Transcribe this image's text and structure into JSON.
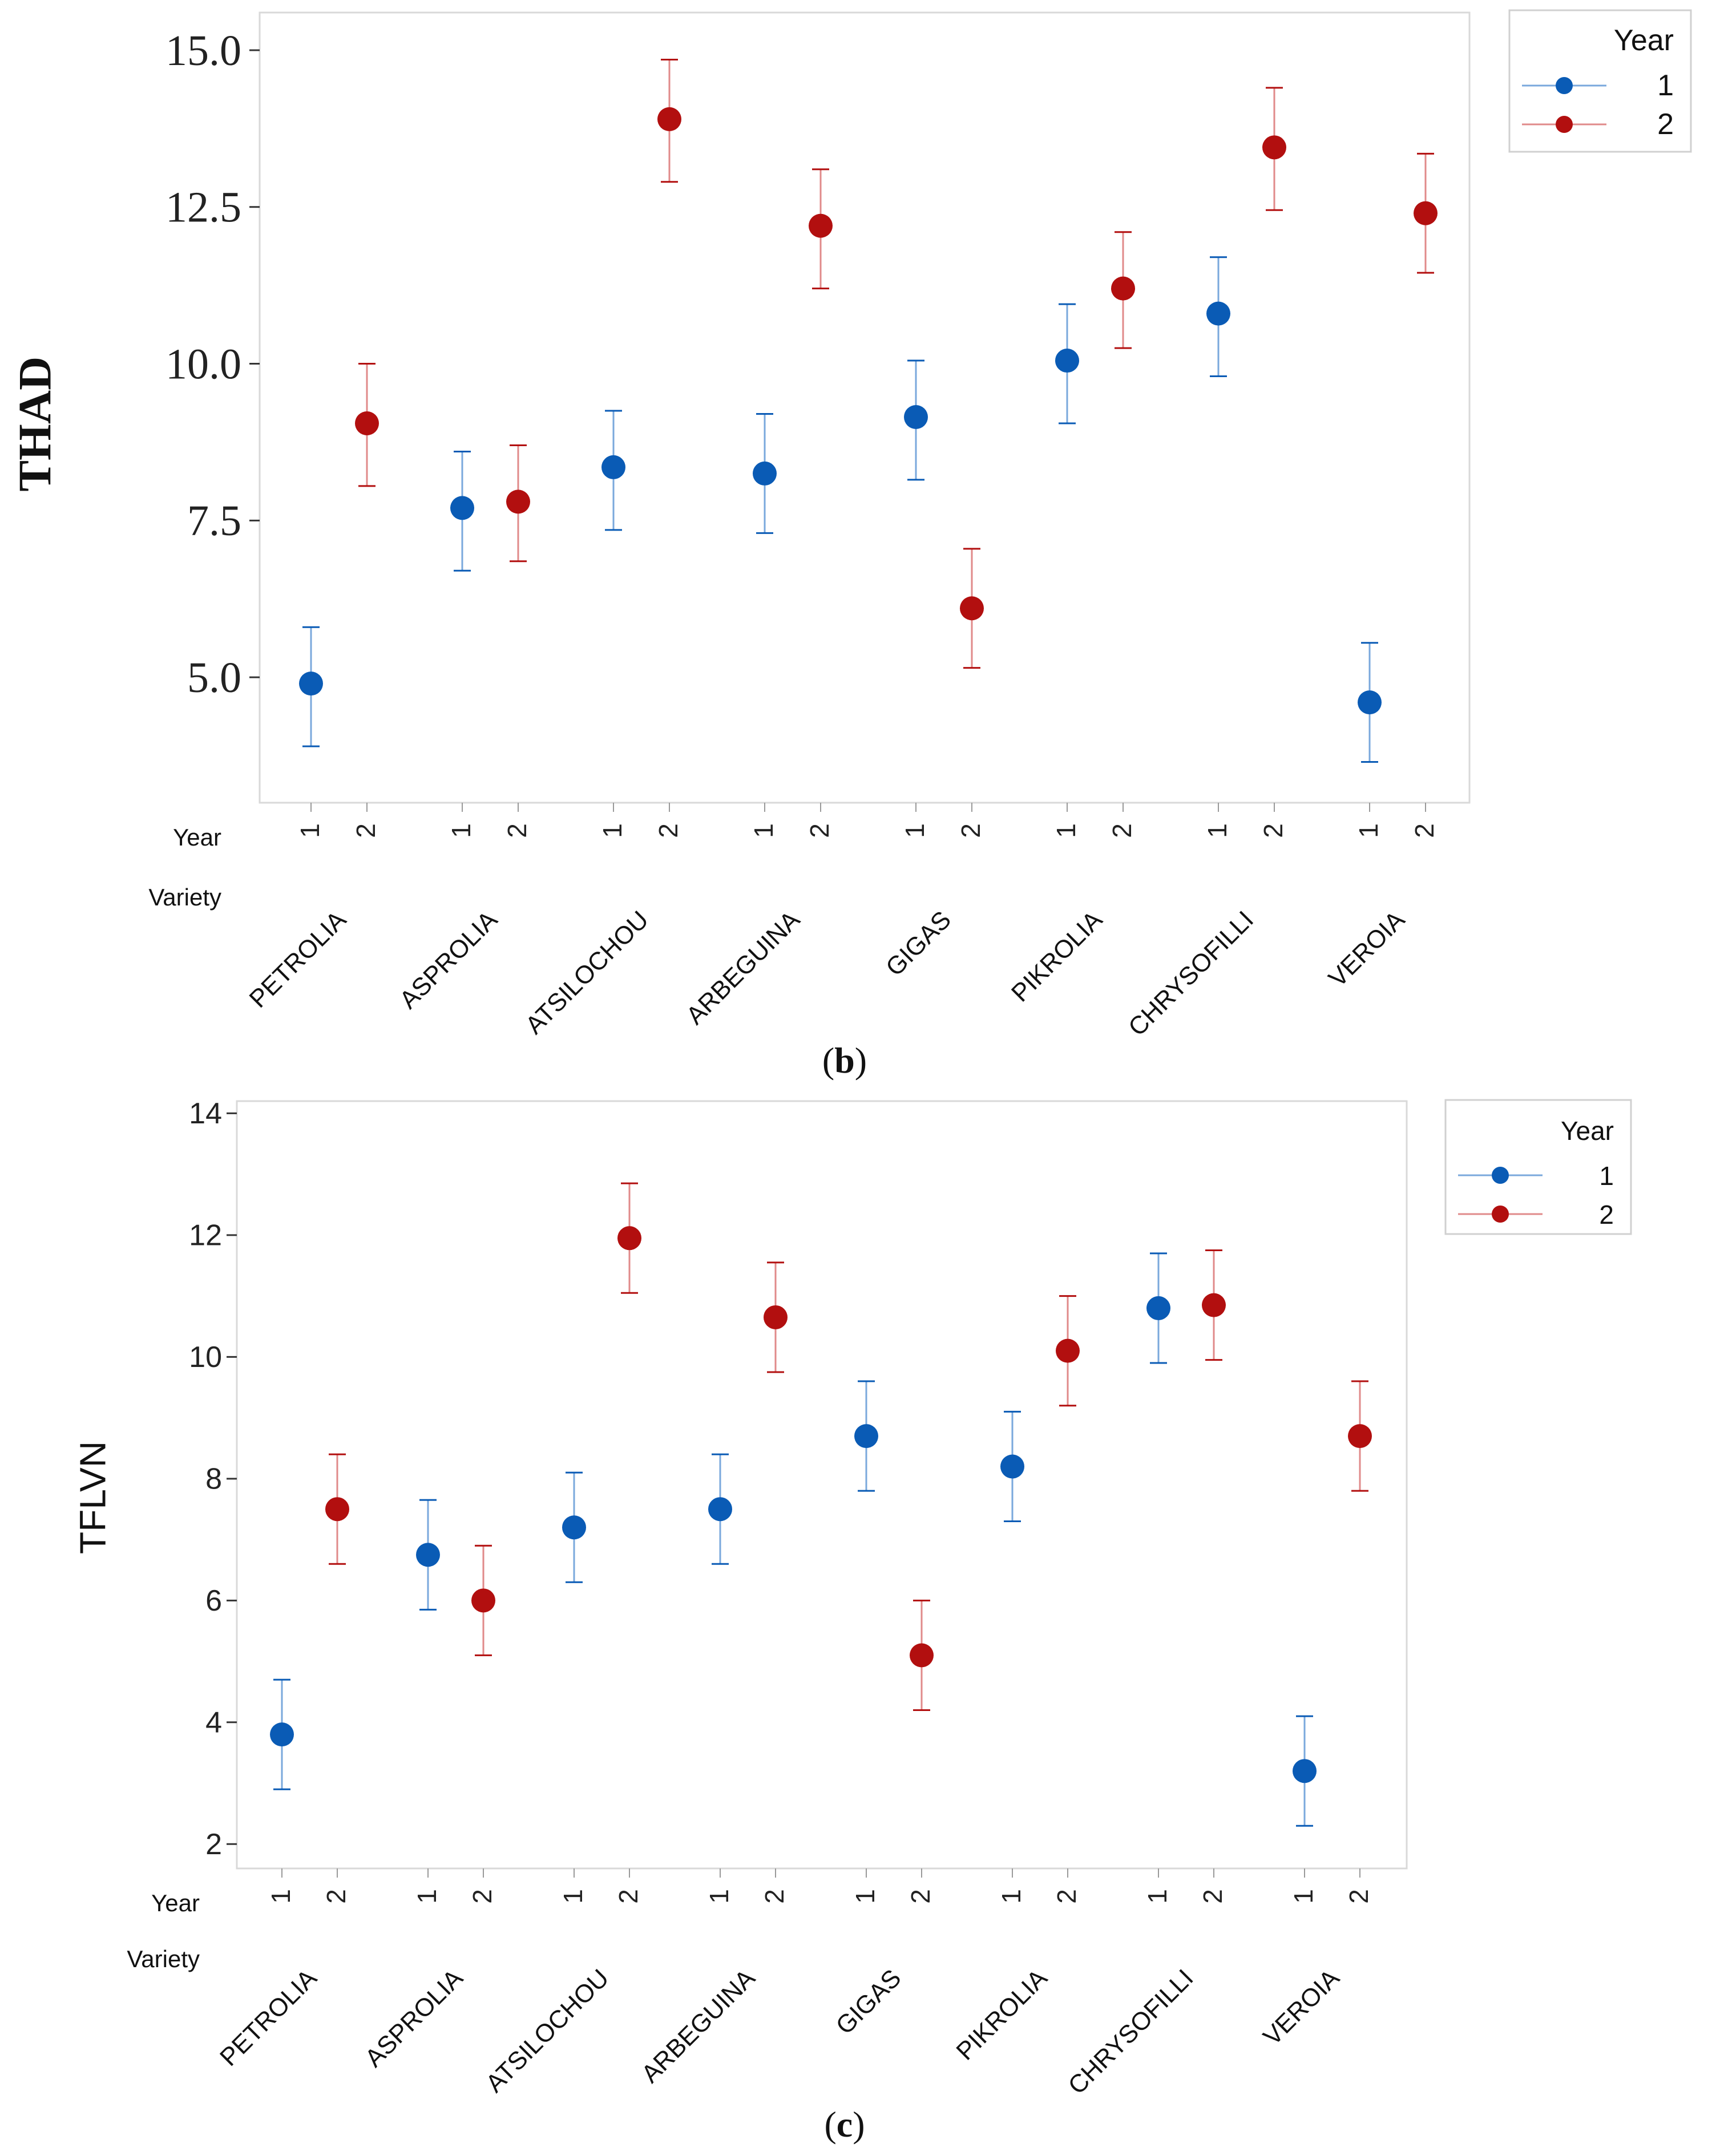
{
  "chart_data": [
    {
      "type": "scatter",
      "panel_label": "(b)",
      "ylabel": "THAD",
      "ylim": [
        3.0,
        15.6
      ],
      "yticks": [
        "5.0",
        "7.5",
        "10.0",
        "12.5",
        "15.0"
      ],
      "ytick_values": [
        5.0,
        7.5,
        10.0,
        12.5,
        15.0
      ],
      "row_labels": [
        "Year",
        "Variety"
      ],
      "year_labels": [
        "1",
        "2"
      ],
      "categories": [
        "PETROLIA",
        "ASPROLIA",
        "ATSILOCHOU",
        "ARBEGUINA",
        "GIGAS",
        "PIKROLIA",
        "CHRYSOFILLI",
        "VEROIA"
      ],
      "legend": {
        "title": "Year",
        "entries": [
          "1",
          "2"
        ],
        "position": "top-right"
      },
      "series": [
        {
          "name": "1",
          "color": "#0a5bb5",
          "values": [
            4.9,
            7.7,
            8.35,
            8.25,
            9.15,
            10.05,
            10.8,
            4.6
          ],
          "lower": [
            3.9,
            6.7,
            7.35,
            7.3,
            8.15,
            9.05,
            9.8,
            3.65
          ],
          "upper": [
            5.8,
            8.6,
            9.25,
            9.2,
            10.05,
            10.95,
            11.7,
            5.55
          ]
        },
        {
          "name": "2",
          "color": "#b20f0f",
          "values": [
            9.05,
            7.8,
            13.9,
            12.2,
            6.1,
            11.2,
            13.45,
            12.4
          ],
          "lower": [
            8.05,
            6.85,
            12.9,
            11.2,
            5.15,
            10.25,
            12.45,
            11.45
          ],
          "upper": [
            10.0,
            8.7,
            14.85,
            13.1,
            7.05,
            12.1,
            14.4,
            13.35
          ]
        }
      ]
    },
    {
      "type": "scatter",
      "panel_label": "(c)",
      "ylabel": "TFLVN",
      "ylim": [
        1.6,
        14.2
      ],
      "yticks": [
        "2",
        "4",
        "6",
        "8",
        "10",
        "12",
        "14"
      ],
      "ytick_values": [
        2,
        4,
        6,
        8,
        10,
        12,
        14
      ],
      "row_labels": [
        "Year",
        "Variety"
      ],
      "year_labels": [
        "1",
        "2"
      ],
      "categories": [
        "PETROLIA",
        "ASPROLIA",
        "ATSILOCHOU",
        "ARBEGUINA",
        "GIGAS",
        "PIKROLIA",
        "CHRYSOFILLI",
        "VEROIA"
      ],
      "legend": {
        "title": "Year",
        "entries": [
          "1",
          "2"
        ],
        "position": "top-right"
      },
      "series": [
        {
          "name": "1",
          "color": "#0a5bb5",
          "values": [
            3.8,
            6.75,
            7.2,
            7.5,
            8.7,
            8.2,
            10.8,
            3.2
          ],
          "lower": [
            2.9,
            5.85,
            6.3,
            6.6,
            7.8,
            7.3,
            9.9,
            2.3
          ],
          "upper": [
            4.7,
            7.65,
            8.1,
            8.4,
            9.6,
            9.1,
            11.7,
            4.1
          ]
        },
        {
          "name": "2",
          "color": "#b20f0f",
          "values": [
            7.5,
            6.0,
            11.95,
            10.65,
            5.1,
            10.1,
            10.85,
            8.7
          ],
          "lower": [
            6.6,
            5.1,
            11.05,
            9.75,
            4.2,
            9.2,
            9.95,
            7.8
          ],
          "upper": [
            8.4,
            6.9,
            12.85,
            11.55,
            6.0,
            11.0,
            11.75,
            9.6
          ]
        }
      ]
    }
  ]
}
